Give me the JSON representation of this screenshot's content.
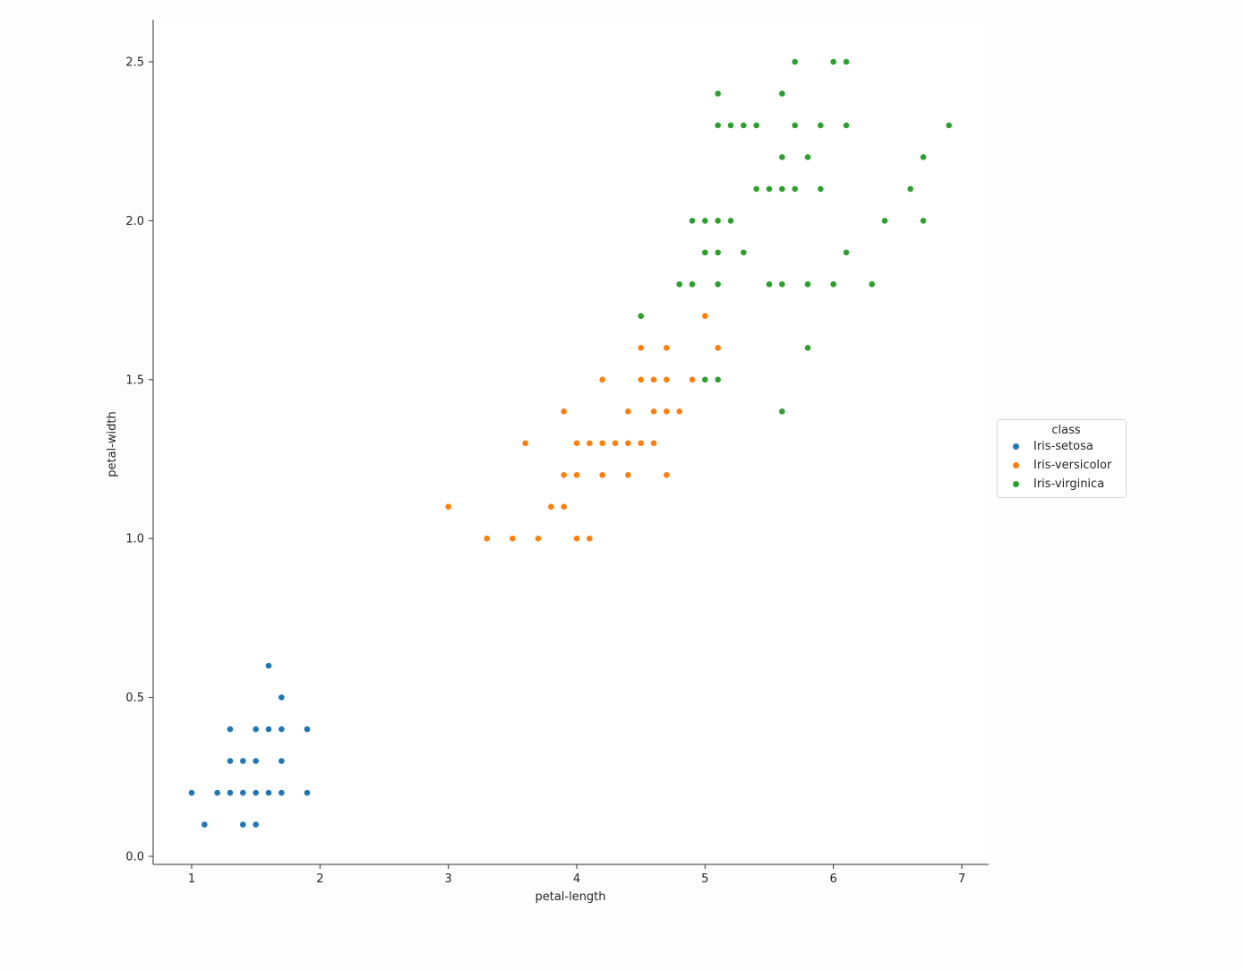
{
  "chart_data": {
    "type": "scatter",
    "xlabel": "petal-length",
    "ylabel": "petal-width",
    "xlim": [
      0.7,
      7.2
    ],
    "ylim": [
      -0.03,
      2.63
    ],
    "xticks": [
      "1",
      "2",
      "3",
      "4",
      "5",
      "6",
      "7"
    ],
    "yticks": [
      "0.0",
      "0.5",
      "1.0",
      "1.5",
      "2.0",
      "2.5"
    ],
    "grid": false,
    "legend": {
      "title": "class",
      "placement": "right-outside"
    },
    "series": [
      {
        "name": "Iris-setosa",
        "color": "#1f77b4",
        "points": [
          [
            1.6,
            0.6
          ],
          [
            1.7,
            0.5
          ],
          [
            1.3,
            0.4
          ],
          [
            1.5,
            0.4
          ],
          [
            1.6,
            0.4
          ],
          [
            1.7,
            0.4
          ],
          [
            1.9,
            0.4
          ],
          [
            1.3,
            0.3
          ],
          [
            1.4,
            0.3
          ],
          [
            1.5,
            0.3
          ],
          [
            1.7,
            0.3
          ],
          [
            1.0,
            0.2
          ],
          [
            1.2,
            0.2
          ],
          [
            1.3,
            0.2
          ],
          [
            1.4,
            0.2
          ],
          [
            1.5,
            0.2
          ],
          [
            1.6,
            0.2
          ],
          [
            1.7,
            0.2
          ],
          [
            1.9,
            0.2
          ],
          [
            1.1,
            0.1
          ],
          [
            1.4,
            0.1
          ],
          [
            1.5,
            0.1
          ]
        ]
      },
      {
        "name": "Iris-versicolor",
        "color": "#ff7f0e",
        "points": [
          [
            5.0,
            1.7
          ],
          [
            4.5,
            1.6
          ],
          [
            4.7,
            1.6
          ],
          [
            5.1,
            1.6
          ],
          [
            4.2,
            1.5
          ],
          [
            4.5,
            1.5
          ],
          [
            4.6,
            1.5
          ],
          [
            4.7,
            1.5
          ],
          [
            4.9,
            1.5
          ],
          [
            3.9,
            1.4
          ],
          [
            4.4,
            1.4
          ],
          [
            4.6,
            1.4
          ],
          [
            4.7,
            1.4
          ],
          [
            4.8,
            1.4
          ],
          [
            3.6,
            1.3
          ],
          [
            4.0,
            1.3
          ],
          [
            4.1,
            1.3
          ],
          [
            4.2,
            1.3
          ],
          [
            4.3,
            1.3
          ],
          [
            4.4,
            1.3
          ],
          [
            4.5,
            1.3
          ],
          [
            4.6,
            1.3
          ],
          [
            3.9,
            1.2
          ],
          [
            4.0,
            1.2
          ],
          [
            4.2,
            1.2
          ],
          [
            4.4,
            1.2
          ],
          [
            4.7,
            1.2
          ],
          [
            3.0,
            1.1
          ],
          [
            3.8,
            1.1
          ],
          [
            3.9,
            1.1
          ],
          [
            3.3,
            1.0
          ],
          [
            3.5,
            1.0
          ],
          [
            3.7,
            1.0
          ],
          [
            4.0,
            1.0
          ],
          [
            4.1,
            1.0
          ]
        ]
      },
      {
        "name": "Iris-virginica",
        "color": "#2ca02c",
        "points": [
          [
            5.7,
            2.5
          ],
          [
            6.0,
            2.5
          ],
          [
            6.1,
            2.5
          ],
          [
            5.1,
            2.4
          ],
          [
            5.6,
            2.4
          ],
          [
            5.1,
            2.3
          ],
          [
            5.2,
            2.3
          ],
          [
            5.3,
            2.3
          ],
          [
            5.4,
            2.3
          ],
          [
            5.7,
            2.3
          ],
          [
            5.9,
            2.3
          ],
          [
            6.1,
            2.3
          ],
          [
            6.9,
            2.3
          ],
          [
            5.6,
            2.2
          ],
          [
            5.8,
            2.2
          ],
          [
            6.7,
            2.2
          ],
          [
            5.4,
            2.1
          ],
          [
            5.5,
            2.1
          ],
          [
            5.6,
            2.1
          ],
          [
            5.7,
            2.1
          ],
          [
            5.9,
            2.1
          ],
          [
            6.6,
            2.1
          ],
          [
            4.9,
            2.0
          ],
          [
            5.0,
            2.0
          ],
          [
            5.1,
            2.0
          ],
          [
            5.2,
            2.0
          ],
          [
            6.4,
            2.0
          ],
          [
            6.7,
            2.0
          ],
          [
            5.0,
            1.9
          ],
          [
            5.1,
            1.9
          ],
          [
            5.3,
            1.9
          ],
          [
            6.1,
            1.9
          ],
          [
            4.8,
            1.8
          ],
          [
            4.9,
            1.8
          ],
          [
            5.1,
            1.8
          ],
          [
            5.5,
            1.8
          ],
          [
            5.6,
            1.8
          ],
          [
            5.8,
            1.8
          ],
          [
            6.0,
            1.8
          ],
          [
            6.3,
            1.8
          ],
          [
            4.5,
            1.7
          ],
          [
            5.8,
            1.6
          ],
          [
            5.0,
            1.5
          ],
          [
            5.1,
            1.5
          ],
          [
            5.6,
            1.4
          ]
        ]
      }
    ]
  }
}
